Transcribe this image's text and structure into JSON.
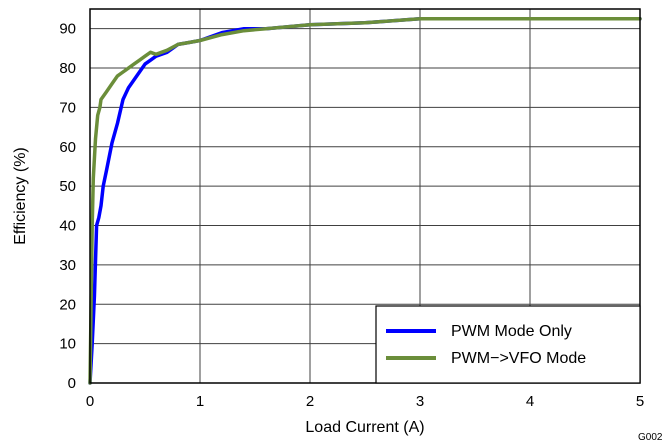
{
  "figure_code": "G002",
  "chart_data": {
    "type": "line",
    "title": "",
    "xlabel": "Load Current (A)",
    "ylabel": "Efficiency (%)",
    "xlim": [
      0,
      5
    ],
    "ylim": [
      0,
      95
    ],
    "x_ticks": [
      0,
      1,
      2,
      3,
      4,
      5
    ],
    "y_ticks": [
      0,
      10,
      20,
      30,
      40,
      50,
      60,
      70,
      80,
      90
    ],
    "grid": true,
    "legend_position": "bottom-right",
    "series": [
      {
        "name": "PWM  Mode Only",
        "color": "#0000ff",
        "x": [
          0.0,
          0.02,
          0.04,
          0.06,
          0.08,
          0.1,
          0.12,
          0.15,
          0.2,
          0.25,
          0.3,
          0.35,
          0.4,
          0.45,
          0.5,
          0.55,
          0.6,
          0.7,
          0.8,
          0.9,
          1.0,
          1.2,
          1.4,
          1.6,
          1.8,
          2.0,
          2.5,
          3.0,
          3.5,
          4.0,
          4.5,
          5.0
        ],
        "y": [
          0,
          10,
          22,
          40,
          42,
          45,
          50,
          54,
          61,
          66,
          72,
          75,
          77,
          79,
          81,
          82,
          83,
          84,
          86,
          86.5,
          87,
          89,
          90,
          90,
          90.5,
          91,
          91.5,
          92.5,
          92.5,
          92.5,
          92.5,
          92.5
        ]
      },
      {
        "name": "PWM−>VFO Mode",
        "color": "#6b8e3a",
        "x": [
          0.0,
          0.01,
          0.02,
          0.03,
          0.05,
          0.07,
          0.09,
          0.1,
          0.15,
          0.2,
          0.25,
          0.3,
          0.35,
          0.4,
          0.45,
          0.5,
          0.55,
          0.6,
          0.7,
          0.8,
          0.9,
          1.0,
          1.2,
          1.4,
          1.6,
          1.8,
          2.0,
          2.5,
          3.0,
          3.5,
          4.0,
          4.5,
          5.0
        ],
        "y": [
          0,
          20,
          40,
          52,
          62,
          68,
          70,
          72,
          74,
          76,
          78,
          79,
          80,
          81,
          82,
          83,
          84,
          83.5,
          84.5,
          86,
          86.5,
          87,
          88.5,
          89.5,
          90,
          90.5,
          91,
          91.5,
          92.5,
          92.5,
          92.5,
          92.5,
          92.5
        ]
      }
    ]
  }
}
